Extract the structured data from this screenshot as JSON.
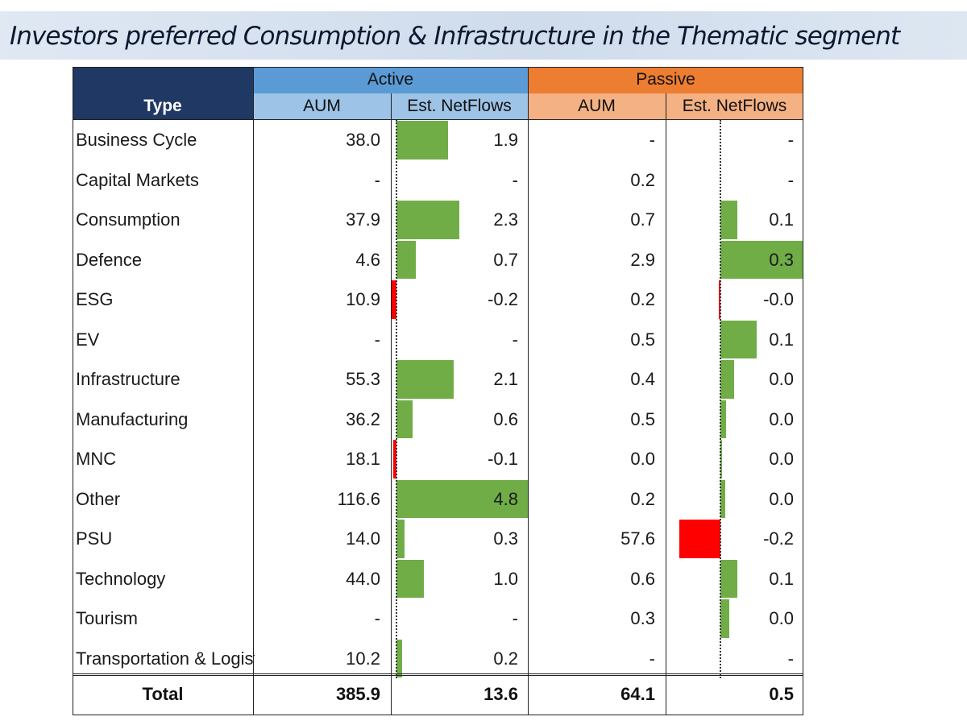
{
  "title": "Investors preferred Consumption & Infrastructure in the Thematic segment",
  "colors": {
    "active_header": "#5b9bd5",
    "active_subheader": "#9dc3e6",
    "passive_header": "#ed7d31",
    "passive_subheader": "#f4b183",
    "type_header": "#203864",
    "positive_bar": "#70ad47",
    "negative_bar": "#ff0000"
  },
  "headers": {
    "type": "Type",
    "active": "Active",
    "passive": "Passive",
    "aum": "AUM",
    "netflows": "Est. NetFlows"
  },
  "chart_data": {
    "type": "table",
    "columns": [
      "Type",
      "Active AUM",
      "Active Est. NetFlows",
      "Passive AUM",
      "Passive Est. NetFlows"
    ],
    "rows": [
      {
        "type": "Business Cycle",
        "active_aum": "38.0",
        "active_flow": "1.9",
        "active_flow_value": 1.9,
        "passive_aum": "-",
        "passive_flow": "-",
        "passive_flow_value": null
      },
      {
        "type": "Capital Markets",
        "active_aum": "-",
        "active_flow": "-",
        "active_flow_value": null,
        "passive_aum": "0.2",
        "passive_flow": "-",
        "passive_flow_value": null
      },
      {
        "type": "Consumption",
        "active_aum": "37.9",
        "active_flow": "2.3",
        "active_flow_value": 2.3,
        "passive_aum": "0.7",
        "passive_flow": "0.1",
        "passive_flow_value": 0.06
      },
      {
        "type": "Defence",
        "active_aum": "4.6",
        "active_flow": "0.7",
        "active_flow_value": 0.7,
        "passive_aum": "2.9",
        "passive_flow": "0.3",
        "passive_flow_value": 0.3
      },
      {
        "type": "ESG",
        "active_aum": "10.9",
        "active_flow": "-0.2",
        "active_flow_value": -0.2,
        "passive_aum": "0.2",
        "passive_flow": "-0.0",
        "passive_flow_value": -0.004
      },
      {
        "type": "EV",
        "active_aum": "-",
        "active_flow": "-",
        "active_flow_value": null,
        "passive_aum": "0.5",
        "passive_flow": "0.1",
        "passive_flow_value": 0.13
      },
      {
        "type": "Infrastructure",
        "active_aum": "55.3",
        "active_flow": "2.1",
        "active_flow_value": 2.1,
        "passive_aum": "0.4",
        "passive_flow": "0.0",
        "passive_flow_value": 0.05
      },
      {
        "type": "Manufacturing",
        "active_aum": "36.2",
        "active_flow": "0.6",
        "active_flow_value": 0.6,
        "passive_aum": "0.5",
        "passive_flow": "0.0",
        "passive_flow_value": 0.02
      },
      {
        "type": "MNC",
        "active_aum": "18.1",
        "active_flow": "-0.1",
        "active_flow_value": -0.1,
        "passive_aum": "0.0",
        "passive_flow": "0.0",
        "passive_flow_value": 0.003
      },
      {
        "type": "Other",
        "active_aum": "116.6",
        "active_flow": "4.8",
        "active_flow_value": 4.8,
        "passive_aum": "0.2",
        "passive_flow": "0.0",
        "passive_flow_value": 0.015
      },
      {
        "type": "PSU",
        "active_aum": "14.0",
        "active_flow": "0.3",
        "active_flow_value": 0.3,
        "passive_aum": "57.6",
        "passive_flow": "-0.2",
        "passive_flow_value": -0.15
      },
      {
        "type": "Technology",
        "active_aum": "44.0",
        "active_flow": "1.0",
        "active_flow_value": 1.0,
        "passive_aum": "0.6",
        "passive_flow": "0.1",
        "passive_flow_value": 0.06
      },
      {
        "type": "Tourism",
        "active_aum": "-",
        "active_flow": "-",
        "active_flow_value": null,
        "passive_aum": "0.3",
        "passive_flow": "0.0",
        "passive_flow_value": 0.03
      },
      {
        "type": "Transportation & Logistics",
        "active_aum": "10.2",
        "active_flow": "0.2",
        "active_flow_value": 0.2,
        "passive_aum": "-",
        "passive_flow": "-",
        "passive_flow_value": null
      }
    ],
    "total": {
      "type": "Total",
      "active_aum": "385.9",
      "active_flow": "13.6",
      "passive_aum": "64.1",
      "passive_flow": "0.5"
    },
    "active_flow_bar_range": [
      -0.2,
      4.8
    ],
    "passive_flow_bar_range": [
      -0.2,
      0.3
    ]
  }
}
